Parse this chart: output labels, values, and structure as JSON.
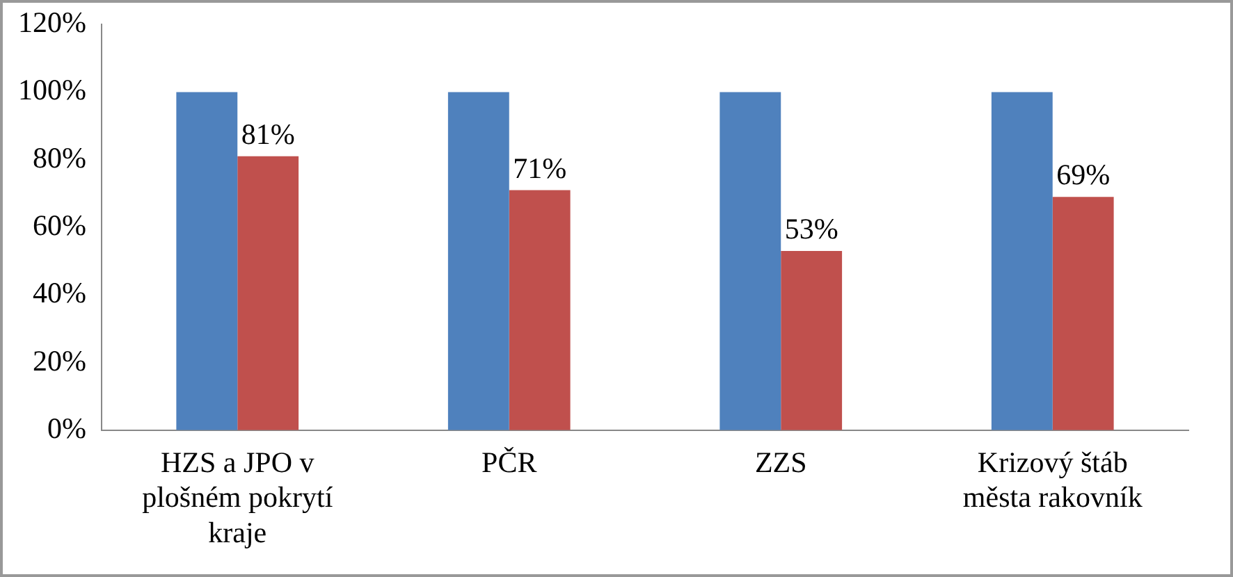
{
  "chart_data": {
    "type": "bar",
    "categories": [
      "HZS a JPO v plošném pokrytí kraje",
      "PČR",
      "ZZS",
      "Krizový štáb města rakovník"
    ],
    "series": [
      {
        "color": "#4f81bd",
        "values": [
          100,
          100,
          100,
          100
        ]
      },
      {
        "color": "#c0504d",
        "values": [
          81,
          71,
          53,
          69
        ],
        "value_labels": [
          "81%",
          "71%",
          "53%",
          "69%"
        ]
      }
    ],
    "ylim": [
      0,
      120
    ],
    "yticks": [
      {
        "value": 0,
        "label": "0%"
      },
      {
        "value": 20,
        "label": "20%"
      },
      {
        "value": 40,
        "label": "40%"
      },
      {
        "value": 60,
        "label": "60%"
      },
      {
        "value": 80,
        "label": "80%"
      },
      {
        "value": 100,
        "label": "100%"
      },
      {
        "value": 120,
        "label": "120%"
      }
    ],
    "grid": false,
    "legend": false
  }
}
